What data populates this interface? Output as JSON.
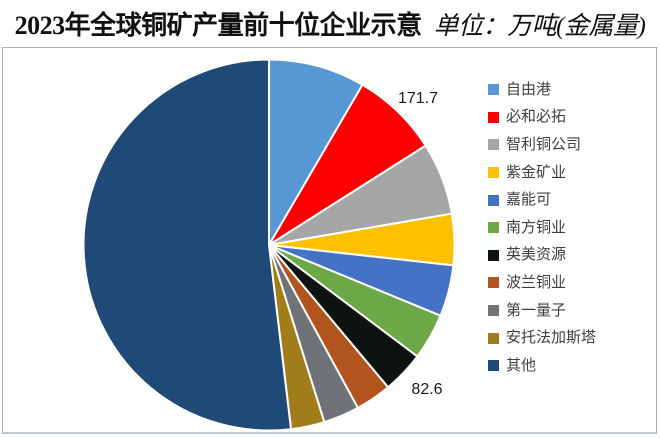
{
  "title": {
    "main": "2023年全球铜矿产量前十位企业示意",
    "unit": "单位：万吨(金属量)"
  },
  "chart_data": {
    "type": "pie",
    "title": "2023年全球铜矿产量前十位企业示意",
    "unit_label": "单位：万吨(金属量)",
    "legend_position": "right",
    "direction": "clockwise",
    "start_angle_deg": 0,
    "labels_shown": [
      "171.7",
      "82.6"
    ],
    "note": "only 171.7 and 82.6 are printed on chart; remaining values estimated from slice angles",
    "series": [
      {
        "name": "自由港",
        "value": 190,
        "color": "#5697D4"
      },
      {
        "name": "必和必拓",
        "value": 171.7,
        "color": "#FE0000",
        "data_label": "171.7"
      },
      {
        "name": "智利铜公司",
        "value": 142.4,
        "color": "#A6A6A6"
      },
      {
        "name": "紫金矿业",
        "value": 100.7,
        "color": "#FFC000"
      },
      {
        "name": "嘉能可",
        "value": 101,
        "color": "#4472C4"
      },
      {
        "name": "南方铜业",
        "value": 91.1,
        "color": "#6CA845"
      },
      {
        "name": "英美资源",
        "value": 82.6,
        "color": "#0D1311",
        "data_label": "82.6"
      },
      {
        "name": "波兰铜业",
        "value": 71,
        "color": "#B1541E"
      },
      {
        "name": "第一量子",
        "value": 70.8,
        "color": "#6F7377"
      },
      {
        "name": "安托法加斯塔",
        "value": 66.1,
        "color": "#A07D1A"
      },
      {
        "name": "其他",
        "value": 1173,
        "color": "#1F4976"
      }
    ]
  }
}
